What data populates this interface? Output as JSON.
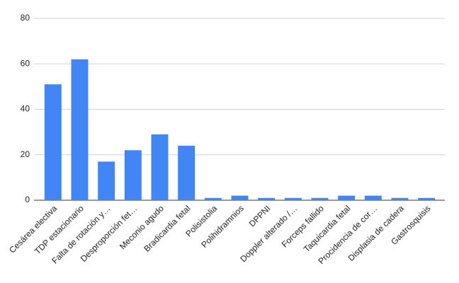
{
  "chart_data": {
    "type": "bar",
    "categories": [
      "Cesárea electiva",
      "TDP estacionario",
      "Falta de rotación y…",
      "Desproporción fet…",
      "Meconio agudo",
      "Bradicardia fetal",
      "Polisistolia",
      "Polihidramnios",
      "DPPNI",
      "Doppler alterado /…",
      "Forceps fallido",
      "Taquicardia fetal",
      "Procidencia de cor…",
      "Displasia de cadera",
      "Gastrosquisis"
    ],
    "values": [
      51,
      62,
      17,
      22,
      29,
      24,
      1,
      2,
      1,
      1,
      1,
      2,
      2,
      1,
      1
    ],
    "color": "#4285f4",
    "ylim": [
      0,
      80
    ],
    "yticks": [
      0,
      20,
      40,
      60,
      80
    ],
    "grid": true
  }
}
